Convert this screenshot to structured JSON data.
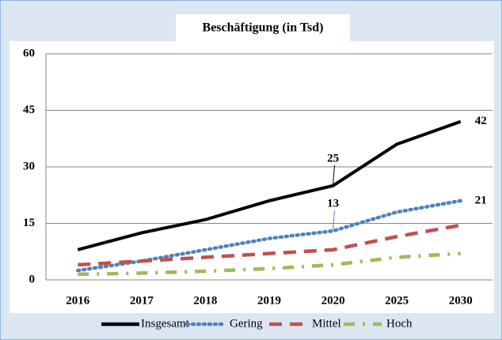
{
  "chart_data": {
    "type": "line",
    "title": "Beschäftigung (in Tsd)",
    "categories": [
      "2016",
      "2017",
      "2018",
      "2019",
      "2020",
      "2025",
      "2030"
    ],
    "series": [
      {
        "name": "Insgesamt",
        "color": "#000000",
        "style": "solid",
        "values": [
          8,
          12.5,
          16,
          21,
          25,
          36,
          42
        ],
        "value_labels": [
          null,
          null,
          null,
          null,
          "25",
          null,
          "42"
        ]
      },
      {
        "name": "Gering",
        "color": "#4f81bd",
        "style": "dotted",
        "values": [
          2.5,
          5,
          8,
          11,
          13,
          18,
          21
        ],
        "value_labels": [
          null,
          null,
          null,
          null,
          "13",
          null,
          "21"
        ]
      },
      {
        "name": "Mittel",
        "color": "#c0504d",
        "style": "dashed",
        "values": [
          4,
          5,
          6,
          7,
          8,
          11.5,
          14.5
        ]
      },
      {
        "name": "Hoch",
        "color": "#9bbb59",
        "style": "dashdot",
        "values": [
          1.5,
          1.8,
          2.3,
          3,
          4,
          6,
          7
        ]
      }
    ],
    "ylim": [
      0,
      60
    ],
    "yticks": [
      0,
      15,
      30,
      45,
      60
    ],
    "grid": true,
    "legend": "bottom"
  }
}
